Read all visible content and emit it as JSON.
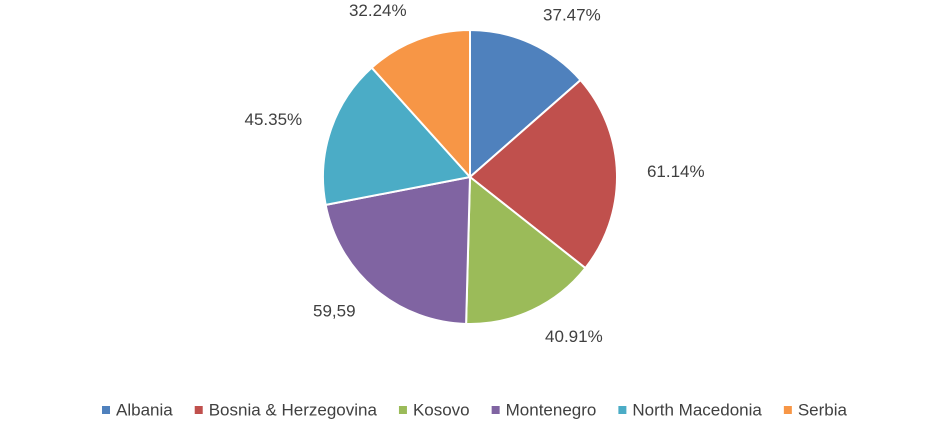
{
  "chart_data": {
    "type": "pie",
    "categories": [
      "Albania",
      "Bosnia & Herzegovina",
      "Kosovo",
      "Montenegro",
      "North Macedonia",
      "Serbia"
    ],
    "values": [
      37.47,
      61.14,
      40.91,
      59.59,
      45.35,
      32.24
    ],
    "value_labels": [
      "37.47%",
      "61.14%",
      "40.91%",
      "59,59",
      "45.35%",
      "32.24%"
    ],
    "colors": [
      "#4f81bd",
      "#c0504d",
      "#9bbb59",
      "#8064a2",
      "#4bacc6",
      "#f79646"
    ],
    "legend": "bottom"
  }
}
